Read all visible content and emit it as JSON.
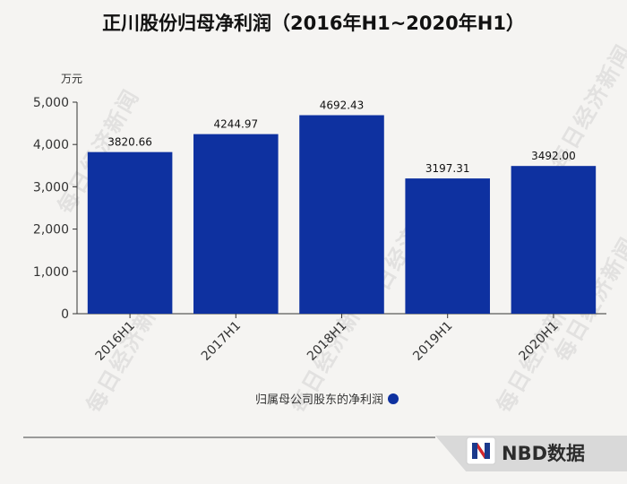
{
  "title": "正川股份归母净利润（2016年H1~2020年H1）",
  "watermark": "每日经济新闻",
  "brand": "NBD数据",
  "chart_data": {
    "type": "bar",
    "title": "正川股份归母净利润（2016年H1~2020年H1）",
    "unit_label": "万元",
    "categories": [
      "2016H1",
      "2017H1",
      "2018H1",
      "2019H1",
      "2020H1"
    ],
    "series": [
      {
        "name": "归属母公司股东的净利润",
        "values": [
          3820.66,
          4244.97,
          4692.43,
          3197.31,
          3492.0
        ],
        "color": "#0e31a0"
      }
    ],
    "data_labels": [
      "3820.66",
      "4244.97",
      "4692.43",
      "3197.31",
      "3492.00"
    ],
    "y_ticks": [
      "0",
      "1,000",
      "2,000",
      "3,000",
      "4,000",
      "5,000"
    ],
    "ylim": [
      0,
      5000
    ],
    "grid": false,
    "legend_position": "bottom"
  }
}
